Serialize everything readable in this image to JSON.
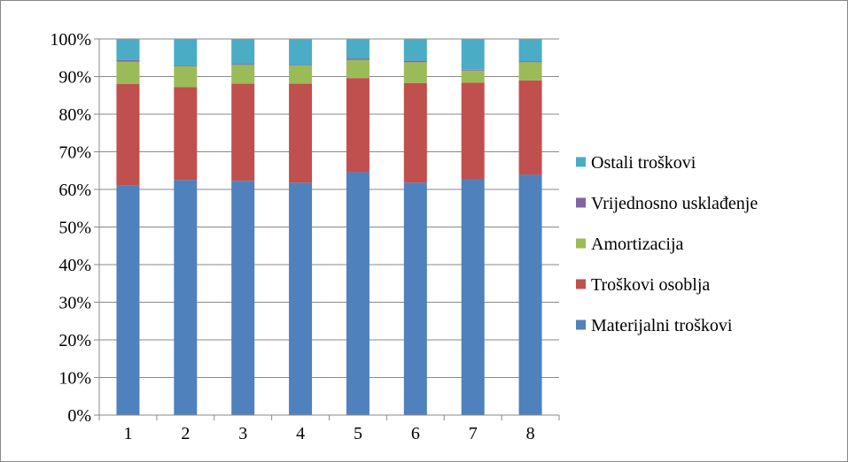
{
  "chart_data": {
    "type": "bar",
    "stacked": true,
    "percent_stacked": true,
    "title": "",
    "xlabel": "",
    "ylabel": "",
    "categories": [
      "1",
      "2",
      "3",
      "4",
      "5",
      "6",
      "7",
      "8"
    ],
    "ylim": [
      0,
      100
    ],
    "y_ticks": [
      "0%",
      "10%",
      "20%",
      "30%",
      "40%",
      "50%",
      "60%",
      "70%",
      "80%",
      "90%",
      "100%"
    ],
    "grid": true,
    "legend_position": "right",
    "series": [
      {
        "name": "Materijalni troškovi",
        "color": "#4F81BD",
        "values": [
          61.0,
          62.5,
          62.3,
          61.8,
          64.6,
          61.8,
          62.7,
          63.9
        ]
      },
      {
        "name": "Troškovi osoblja",
        "color": "#C0504D",
        "values": [
          27.0,
          24.7,
          25.8,
          26.3,
          25.0,
          26.5,
          25.7,
          25.1
        ]
      },
      {
        "name": "Amortizacija",
        "color": "#9BBB59",
        "values": [
          6.0,
          5.5,
          5.0,
          4.8,
          4.8,
          5.5,
          3.2,
          4.8
        ]
      },
      {
        "name": "Vrijednosno usklađenje",
        "color": "#8064A2",
        "values": [
          0.4,
          0.2,
          0.2,
          0.2,
          0.4,
          0.4,
          0.2,
          0.2
        ]
      },
      {
        "name": "Ostali troškovi",
        "color": "#4BACC6",
        "values": [
          5.6,
          7.1,
          6.7,
          6.9,
          5.2,
          5.8,
          8.2,
          6.0
        ]
      }
    ],
    "legend_order": [
      "Ostali troškovi",
      "Vrijednosno usklađenje",
      "Amortizacija",
      "Troškovi osoblja",
      "Materijalni troškovi"
    ]
  }
}
